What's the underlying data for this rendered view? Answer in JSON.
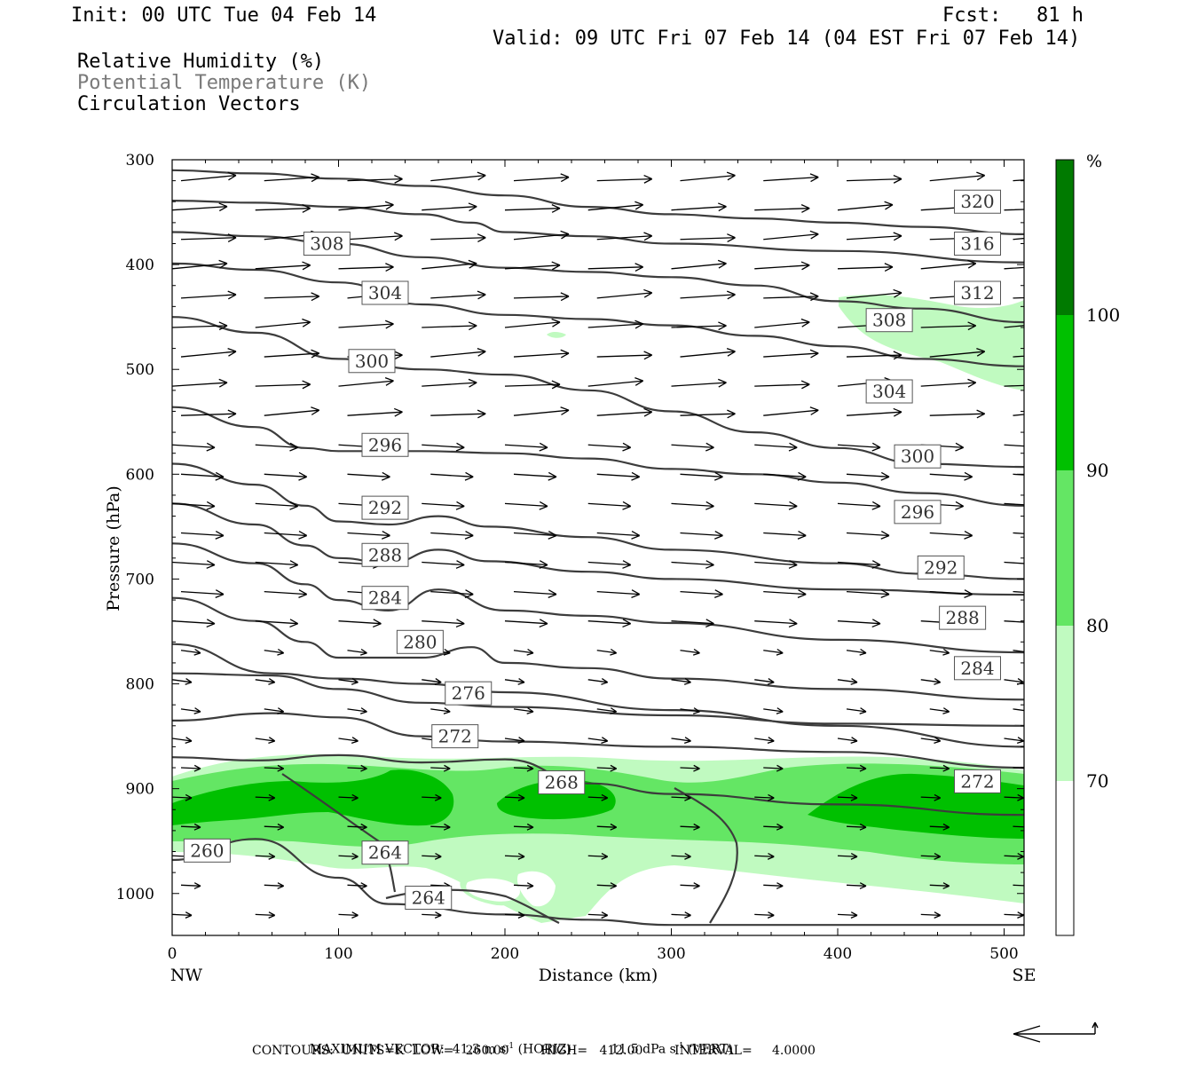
{
  "header": {
    "init": "Init: 00 UTC Tue 04 Feb 14",
    "fcst": "Fcst:   81 h",
    "valid": "Valid: 09 UTC Fri 07 Feb 14 (04 EST Fri 07 Feb 14)",
    "legend1": "Relative Humidity (%)",
    "legend2": "Potential Temperature (K)",
    "legend3": "Circulation Vectors"
  },
  "footer": {
    "max_vector_prefix": "MAXIMUM VECTOR:  41.3 m s",
    "max_vector_horiz": "(HORIZ)",
    "max_vector_vert_prefix": "11.5 dPa s",
    "max_vector_vert": "(VERT)",
    "exponent": "-1",
    "contours": "CONTOURS:  UNITS=K  LOW=   260.00        HIGH=   412.00        INTERVAL=     4.0000"
  },
  "colors": {
    "rh70": "#c0fac0",
    "rh80": "#64e664",
    "rh90": "#00c000",
    "rh100": "#007a00",
    "contour": "#3c3c3c",
    "vector": "#000000"
  },
  "chart_data": {
    "type": "cross-section",
    "xlabel": "Distance (km)",
    "ylabel": "Pressure (hPa)",
    "xlim": [
      0,
      512
    ],
    "ylim": [
      1040,
      300
    ],
    "x_ticks": [
      0,
      100,
      200,
      300,
      400,
      500
    ],
    "y_ticks": [
      300,
      400,
      500,
      600,
      700,
      800,
      900,
      1000
    ],
    "x_end_labels": {
      "left": "NW",
      "right": "SE"
    },
    "colorbar": {
      "unit": "%",
      "levels": [
        70,
        80,
        90,
        100
      ]
    },
    "isentropes": [
      {
        "value": 320,
        "points": [
          [
            0,
            310
          ],
          [
            50,
            313
          ],
          [
            100,
            318
          ],
          [
            150,
            325
          ],
          [
            200,
            334
          ],
          [
            250,
            345
          ],
          [
            300,
            352
          ],
          [
            350,
            356
          ],
          [
            400,
            360
          ],
          [
            450,
            364
          ],
          [
            512,
            371
          ]
        ]
      },
      {
        "value": 316,
        "points": [
          [
            0,
            339
          ],
          [
            50,
            341
          ],
          [
            100,
            345
          ],
          [
            150,
            352
          ],
          [
            180,
            360
          ],
          [
            200,
            369
          ],
          [
            250,
            373
          ],
          [
            300,
            380
          ],
          [
            400,
            387
          ],
          [
            512,
            398
          ]
        ]
      },
      {
        "value": 312,
        "points": [
          [
            0,
            369
          ],
          [
            50,
            373
          ],
          [
            100,
            380
          ],
          [
            150,
            393
          ],
          [
            200,
            403
          ],
          [
            250,
            407
          ],
          [
            300,
            412
          ],
          [
            350,
            420
          ],
          [
            400,
            435
          ],
          [
            450,
            442
          ],
          [
            512,
            455
          ]
        ]
      },
      {
        "value": 308,
        "points": [
          [
            0,
            399
          ],
          [
            50,
            405
          ],
          [
            100,
            417
          ],
          [
            150,
            438
          ],
          [
            200,
            448
          ],
          [
            250,
            452
          ],
          [
            300,
            458
          ],
          [
            350,
            468
          ],
          [
            400,
            478
          ],
          [
            450,
            490
          ],
          [
            512,
            497
          ]
        ]
      },
      {
        "value": 304,
        "points": [
          [
            0,
            450
          ],
          [
            50,
            465
          ],
          [
            100,
            490
          ],
          [
            150,
            500
          ],
          [
            200,
            505
          ],
          [
            250,
            520
          ],
          [
            300,
            540
          ],
          [
            350,
            560
          ],
          [
            400,
            575
          ],
          [
            450,
            590
          ],
          [
            512,
            593
          ]
        ]
      },
      {
        "value": 300,
        "points": [
          [
            0,
            536
          ],
          [
            50,
            555
          ],
          [
            80,
            575
          ],
          [
            100,
            578
          ],
          [
            150,
            578
          ],
          [
            200,
            580
          ],
          [
            250,
            585
          ],
          [
            300,
            595
          ],
          [
            350,
            600
          ],
          [
            400,
            608
          ],
          [
            450,
            618
          ],
          [
            512,
            630
          ]
        ]
      },
      {
        "value": 296,
        "points": [
          [
            0,
            590
          ],
          [
            50,
            610
          ],
          [
            80,
            630
          ],
          [
            100,
            645
          ],
          [
            130,
            648
          ],
          [
            160,
            640
          ],
          [
            190,
            650
          ],
          [
            250,
            660
          ],
          [
            300,
            672
          ],
          [
            400,
            685
          ],
          [
            450,
            695
          ],
          [
            512,
            700
          ]
        ]
      },
      {
        "value": 292,
        "points": [
          [
            0,
            628
          ],
          [
            50,
            648
          ],
          [
            80,
            668
          ],
          [
            100,
            680
          ],
          [
            130,
            685
          ],
          [
            160,
            672
          ],
          [
            190,
            683
          ],
          [
            250,
            693
          ],
          [
            300,
            700
          ],
          [
            400,
            710
          ],
          [
            512,
            715
          ]
        ]
      },
      {
        "value": 288,
        "points": [
          [
            0,
            666
          ],
          [
            50,
            685
          ],
          [
            80,
            705
          ],
          [
            100,
            720
          ],
          [
            130,
            730
          ],
          [
            160,
            710
          ],
          [
            200,
            730
          ],
          [
            250,
            735
          ],
          [
            300,
            742
          ],
          [
            400,
            758
          ],
          [
            512,
            770
          ]
        ]
      },
      {
        "value": 284,
        "points": [
          [
            0,
            718
          ],
          [
            50,
            740
          ],
          [
            80,
            760
          ],
          [
            100,
            775
          ],
          [
            150,
            775
          ],
          [
            180,
            765
          ],
          [
            200,
            780
          ],
          [
            250,
            785
          ],
          [
            300,
            795
          ],
          [
            400,
            805
          ],
          [
            512,
            815
          ]
        ]
      },
      {
        "value": 280,
        "points": [
          [
            0,
            762
          ],
          [
            60,
            790
          ],
          [
            100,
            795
          ],
          [
            150,
            800
          ],
          [
            200,
            808
          ],
          [
            300,
            825
          ],
          [
            400,
            840
          ],
          [
            512,
            860
          ]
        ]
      },
      {
        "value": 276,
        "points": [
          [
            0,
            790
          ],
          [
            60,
            792
          ],
          [
            100,
            805
          ],
          [
            150,
            818
          ],
          [
            200,
            822
          ],
          [
            300,
            830
          ],
          [
            400,
            838
          ],
          [
            512,
            840
          ]
        ]
      },
      {
        "value": 272,
        "points": [
          [
            0,
            835
          ],
          [
            60,
            828
          ],
          [
            100,
            832
          ],
          [
            150,
            850
          ],
          [
            200,
            855
          ],
          [
            300,
            860
          ],
          [
            400,
            865
          ],
          [
            512,
            880
          ]
        ]
      },
      {
        "value": 268,
        "points": [
          [
            0,
            870
          ],
          [
            50,
            873
          ],
          [
            100,
            868
          ],
          [
            150,
            875
          ],
          [
            200,
            872
          ],
          [
            250,
            895
          ],
          [
            300,
            905
          ],
          [
            400,
            915
          ],
          [
            512,
            925
          ]
        ]
      },
      {
        "value": 264,
        "points": [
          [
            0,
            968
          ],
          [
            50,
            948
          ],
          [
            100,
            985
          ],
          [
            130,
            1010
          ],
          [
            200,
            1020
          ],
          [
            250,
            1025
          ],
          [
            300,
            1030
          ],
          [
            400,
            1030
          ],
          [
            512,
            1030
          ]
        ]
      }
    ],
    "contour_labels": [
      {
        "text": "320",
        "x": 484,
        "p": 340
      },
      {
        "text": "316",
        "x": 484,
        "p": 380
      },
      {
        "text": "312",
        "x": 484,
        "p": 427
      },
      {
        "text": "308",
        "x": 93,
        "p": 380
      },
      {
        "text": "308",
        "x": 431,
        "p": 453
      },
      {
        "text": "304",
        "x": 128,
        "p": 427
      },
      {
        "text": "304",
        "x": 431,
        "p": 521
      },
      {
        "text": "300",
        "x": 120,
        "p": 492
      },
      {
        "text": "300",
        "x": 448,
        "p": 583
      },
      {
        "text": "296",
        "x": 128,
        "p": 572
      },
      {
        "text": "296",
        "x": 448,
        "p": 636
      },
      {
        "text": "292",
        "x": 128,
        "p": 632
      },
      {
        "text": "292",
        "x": 462,
        "p": 689
      },
      {
        "text": "288",
        "x": 128,
        "p": 677
      },
      {
        "text": "288",
        "x": 475,
        "p": 737
      },
      {
        "text": "284",
        "x": 128,
        "p": 718
      },
      {
        "text": "284",
        "x": 484,
        "p": 785
      },
      {
        "text": "280",
        "x": 149,
        "p": 760
      },
      {
        "text": "276",
        "x": 178,
        "p": 809
      },
      {
        "text": "272",
        "x": 170,
        "p": 850
      },
      {
        "text": "272",
        "x": 484,
        "p": 893
      },
      {
        "text": "268",
        "x": 234,
        "p": 894
      },
      {
        "text": "264",
        "x": 128,
        "p": 961
      },
      {
        "text": "264",
        "x": 154,
        "p": 1004
      },
      {
        "text": "260",
        "x": 21,
        "p": 959
      }
    ]
  }
}
